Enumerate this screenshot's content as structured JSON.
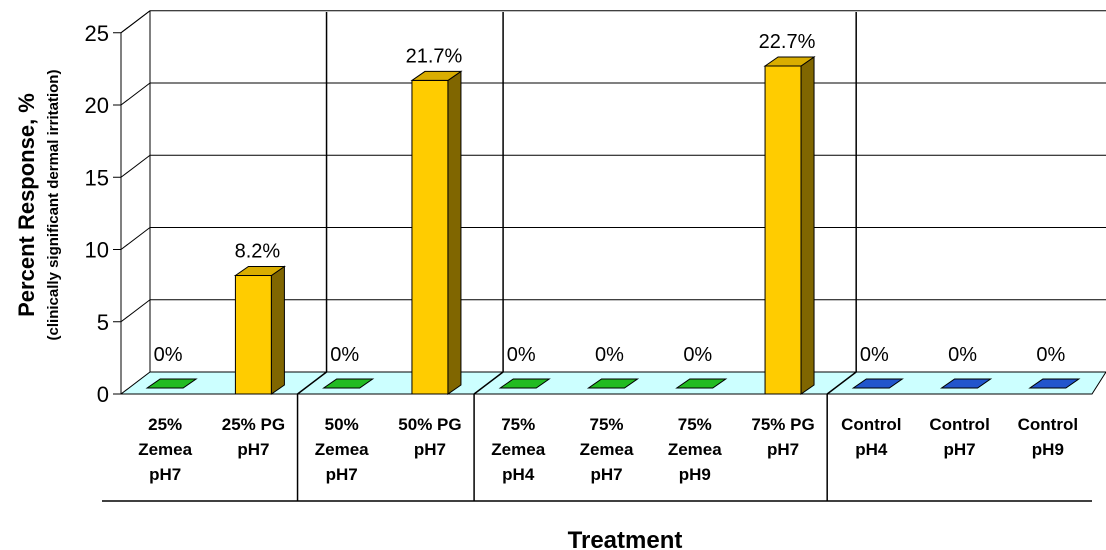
{
  "chart_data": {
    "type": "bar",
    "title": "",
    "xlabel": "Treatment",
    "ylabel": "Percent Response, %",
    "ylabel_sub": "(clinically significant dermal irritation)",
    "ylim": [
      0,
      25
    ],
    "yticks": [
      "0",
      "5",
      "10",
      "15",
      "20",
      "25"
    ],
    "grid": true,
    "legend": "none",
    "categories": [
      [
        "25%",
        "Zemea",
        "pH7"
      ],
      [
        "25% PG",
        "pH7"
      ],
      [
        "50%",
        "Zemea",
        "pH7"
      ],
      [
        "50% PG",
        "pH7"
      ],
      [
        "75%",
        "Zemea",
        "pH4"
      ],
      [
        "75%",
        "Zemea",
        "pH7"
      ],
      [
        "75%",
        "Zemea",
        "pH9"
      ],
      [
        "75% PG",
        "pH7"
      ],
      [
        "Control",
        "pH4"
      ],
      [
        "Control",
        "pH7"
      ],
      [
        "Control",
        "pH9"
      ]
    ],
    "values": [
      0,
      8.2,
      0,
      21.7,
      0,
      0,
      0,
      22.7,
      0,
      0,
      0
    ],
    "data_labels": [
      "0%",
      "8.2%",
      "0%",
      "21.7%",
      "0%",
      "0%",
      "0%",
      "22.7%",
      "0%",
      "0%",
      "0%"
    ],
    "bar_colors": [
      "#22bb22",
      "#ffcc00",
      "#22bb22",
      "#ffcc00",
      "#22bb22",
      "#22bb22",
      "#22bb22",
      "#ffcc00",
      "#2255cc",
      "#2255cc",
      "#2255cc"
    ],
    "groups": [
      2,
      2,
      4,
      3
    ]
  }
}
